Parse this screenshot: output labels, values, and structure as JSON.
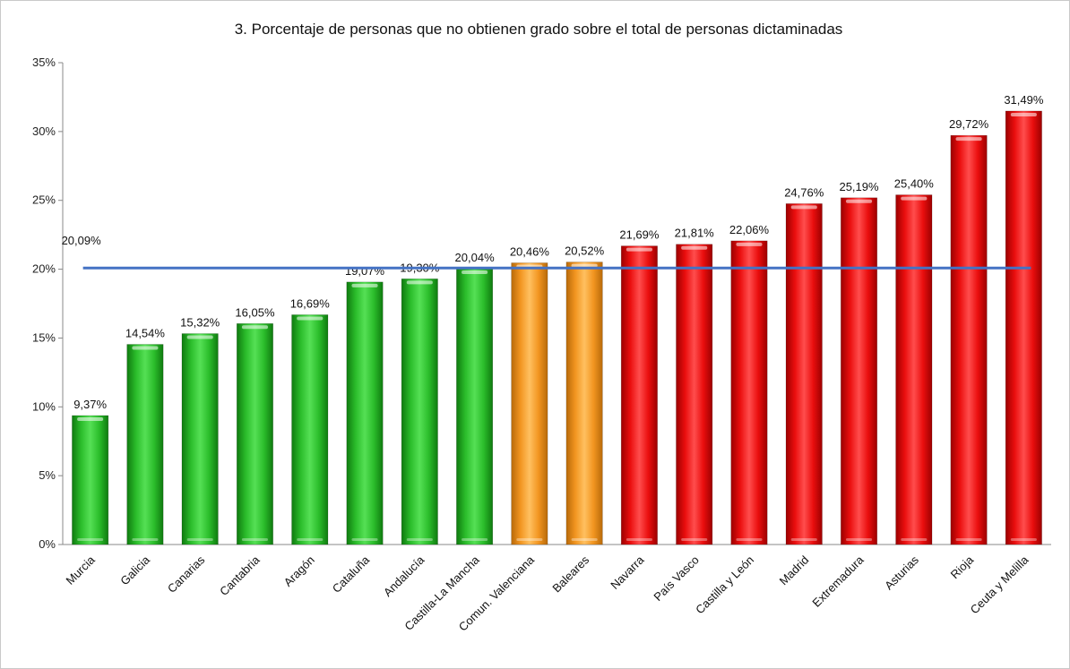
{
  "chart_data": {
    "type": "bar",
    "title": "3. Porcentaje de personas que no obtienen grado sobre el total de personas dictaminadas",
    "xlabel": "",
    "ylabel": "",
    "ylim": [
      0,
      35
    ],
    "ytick_step": 5,
    "ytick_labels": [
      "0%",
      "5%",
      "10%",
      "15%",
      "20%",
      "25%",
      "30%",
      "35%"
    ],
    "grid": false,
    "legend": "none",
    "categories": [
      "Murcia",
      "Galicia",
      "Canarias",
      "Cantabria",
      "Aragón",
      "Cataluña",
      "Andalucía",
      "Castilla-La Mancha",
      "Comun. Valenciana",
      "Baleares",
      "Navarra",
      "País Vasco",
      "Castilla y León",
      "Madrid",
      "Extremadura",
      "Asturias",
      "Rioja",
      "Ceuta y Melilla"
    ],
    "values": [
      9.37,
      14.54,
      15.32,
      16.05,
      16.69,
      19.07,
      19.3,
      20.04,
      20.46,
      20.52,
      21.69,
      21.81,
      22.06,
      24.76,
      25.19,
      25.4,
      29.72,
      31.49
    ],
    "value_labels": [
      "9,37%",
      "14,54%",
      "15,32%",
      "16,05%",
      "16,69%",
      "19,07%",
      "19,30%",
      "20,04%",
      "20,46%",
      "20,52%",
      "21,69%",
      "21,81%",
      "22,06%",
      "24,76%",
      "25,19%",
      "25,40%",
      "29,72%",
      "31,49%"
    ],
    "bar_colors": [
      "green",
      "green",
      "green",
      "green",
      "green",
      "green",
      "green",
      "green",
      "orange",
      "orange",
      "red",
      "red",
      "red",
      "red",
      "red",
      "red",
      "red",
      "red"
    ],
    "palette": {
      "green": "#2ec42e",
      "orange": "#f59b23",
      "red": "#f01010",
      "reference_line": "#4472c4"
    },
    "reference_line": {
      "value": 20.09,
      "label": "20,09%"
    }
  }
}
